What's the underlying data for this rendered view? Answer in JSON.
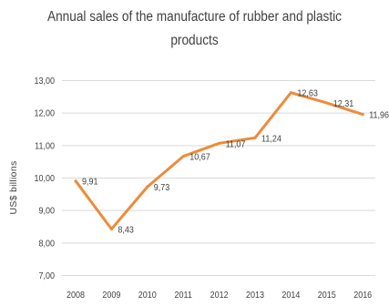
{
  "chart_data": {
    "type": "line",
    "title": "Annual sales of the manufacture of rubber and plastic products",
    "title_lines": [
      "Annual sales of the manufacture of rubber and plastic",
      "products"
    ],
    "ylabel": "US$  billions",
    "xlabel": "",
    "categories": [
      "2008",
      "2009",
      "2010",
      "2011",
      "2012",
      "2013",
      "2014",
      "2015",
      "2016"
    ],
    "values": [
      9.91,
      8.43,
      9.73,
      10.67,
      11.07,
      11.24,
      12.63,
      12.31,
      11.96
    ],
    "data_labels": [
      "9,91",
      "8,43",
      "9,73",
      "10,67",
      "11,07",
      "11,24",
      "12,63",
      "12,31",
      "11,96"
    ],
    "y_ticks": [
      7,
      8,
      9,
      10,
      11,
      12,
      13
    ],
    "y_tick_labels": [
      "7,00",
      "8,00",
      "9,00",
      "10,00",
      "11,00",
      "12,00",
      "13,00"
    ],
    "ylim": [
      7,
      13
    ],
    "grid": true,
    "line_color": "#ED8B3A",
    "grid_color": "#D9D9D9",
    "text_color": "#404040",
    "legend": "none"
  }
}
